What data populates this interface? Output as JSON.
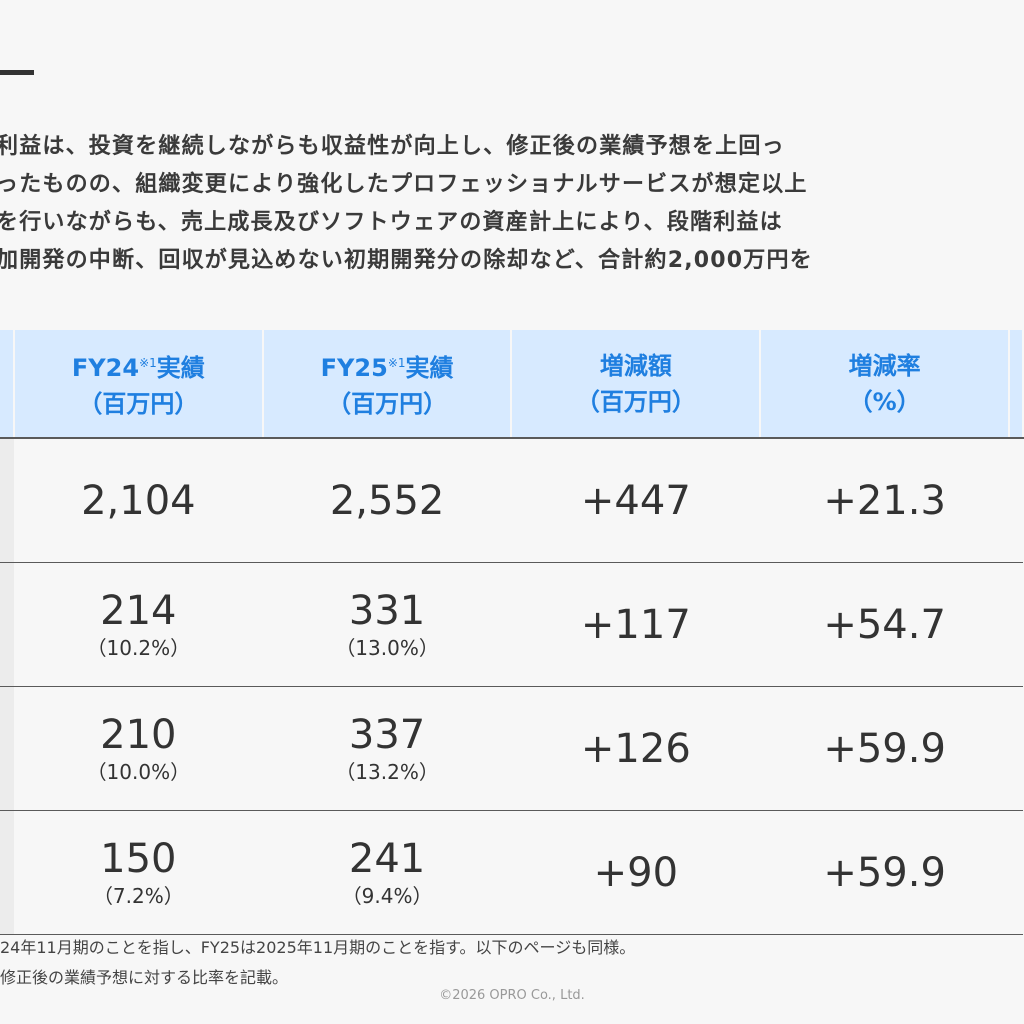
{
  "intro_lines": [
    "利益は、投資を継続しながらも収益性が向上し、修正後の業績予想を上回っ",
    "ったものの、組織変更により強化したプロフェッショナルサービスが想定以上",
    "を行いながらも、売上成長及びソフトウェアの資産計上により、段階利益は",
    "加開発の中断、回収が見込めない初期開発分の除却など、合計約2,000万円を"
  ],
  "table": {
    "headers": [
      {
        "line1": "FY24",
        "sup": "※1",
        "line1b": "実績",
        "line2": "（百万円）"
      },
      {
        "line1": "FY25",
        "sup": "※1",
        "line1b": "実績",
        "line2": "（百万円）"
      },
      {
        "line1": "増減額",
        "sup": "",
        "line1b": "",
        "line2": "（百万円）"
      },
      {
        "line1": "増減率",
        "sup": "",
        "line1b": "",
        "line2": "（%）"
      }
    ],
    "rows": [
      {
        "fy24": "2,104",
        "fy24_pct": "",
        "fy25": "2,552",
        "fy25_pct": "",
        "diff": "+447",
        "rate": "+21.3"
      },
      {
        "fy24": "214",
        "fy24_pct": "（10.2%）",
        "fy25": "331",
        "fy25_pct": "（13.0%）",
        "diff": "+117",
        "rate": "+54.7"
      },
      {
        "fy24": "210",
        "fy24_pct": "（10.0%）",
        "fy25": "337",
        "fy25_pct": "（13.2%）",
        "diff": "+126",
        "rate": "+59.9"
      },
      {
        "fy24": "150",
        "fy24_pct": "（7.2%）",
        "fy25": "241",
        "fy25_pct": "（9.4%）",
        "diff": "+90",
        "rate": "+59.9"
      }
    ]
  },
  "footnotes": [
    "24年11月期のことを指し、FY25は2025年11月期のことを指す。以下のページも同様。",
    "修正後の業績予想に対する比率を記載。"
  ],
  "copyright": "©2026 OPRO Co., Ltd.",
  "colors": {
    "header_bg": "#d7eaff",
    "header_text": "#1f7fe0",
    "row_line": "#5a5a5a"
  }
}
